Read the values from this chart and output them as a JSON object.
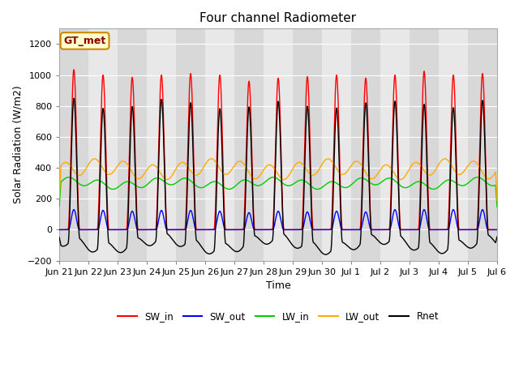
{
  "title": "Four channel Radiometer",
  "xlabel": "Time",
  "ylabel": "Solar Radiation (W/m2)",
  "ylim": [
    -200,
    1300
  ],
  "yticks": [
    -200,
    0,
    200,
    400,
    600,
    800,
    1000,
    1200
  ],
  "xtick_labels": [
    "Jun 21",
    "Jun 22",
    "Jun 23",
    "Jun 24",
    "Jun 25",
    "Jun 26",
    "Jun 27",
    "Jun 28",
    "Jun 29",
    "Jun 30",
    "Jul 1",
    "Jul 2",
    "Jul 3",
    "Jul 4",
    "Jul 5",
    "Jul 6"
  ],
  "SW_in_color": "#ff0000",
  "SW_out_color": "#0000ff",
  "LW_in_color": "#00cc00",
  "LW_out_color": "#ffaa00",
  "Rnet_color": "#000000",
  "fig_bg_color": "#ffffff",
  "plot_bg_color": "#e8e8e8",
  "annotation_text": "GT_met",
  "annotation_bg": "#ffffcc",
  "annotation_border": "#cc8800",
  "sw_in_peaks": [
    1035,
    1000,
    985,
    1000,
    1010,
    1000,
    960,
    980,
    990,
    1000,
    980,
    1000,
    1025,
    1000,
    1010
  ],
  "sw_out_peaks": [
    130,
    125,
    120,
    125,
    125,
    120,
    110,
    120,
    115,
    120,
    115,
    130,
    130,
    130,
    130
  ],
  "lw_in_base": 300,
  "lw_in_amp": 25,
  "lw_out_base": 390,
  "lw_out_amp": 50,
  "grid_color": "#ffffff",
  "band_colors": [
    "#d8d8d8",
    "#e8e8e8"
  ]
}
